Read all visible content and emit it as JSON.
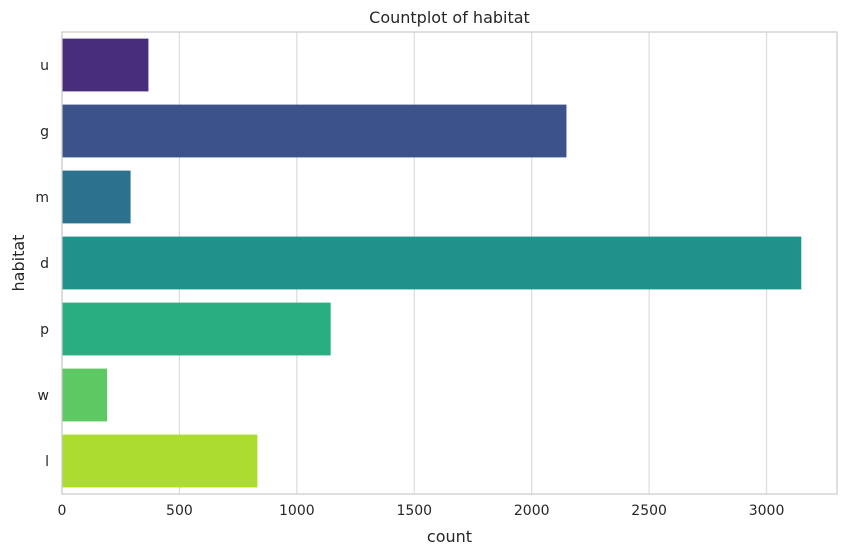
{
  "chart_data": {
    "type": "bar",
    "orientation": "horizontal",
    "title": "Countplot of habitat",
    "xlabel": "count",
    "ylabel": "habitat",
    "categories": [
      "u",
      "g",
      "m",
      "d",
      "p",
      "w",
      "l"
    ],
    "values": [
      368,
      2148,
      292,
      3148,
      1144,
      192,
      832
    ],
    "xlim": [
      0,
      3300
    ],
    "xticks": [
      0,
      500,
      1000,
      1500,
      2000,
      2500,
      3000
    ],
    "grid": "vertical",
    "legend": "none",
    "colors": [
      "#472d7b",
      "#3b528b",
      "#2c728e",
      "#21918c",
      "#28ae80",
      "#5ec962",
      "#addc30"
    ]
  }
}
